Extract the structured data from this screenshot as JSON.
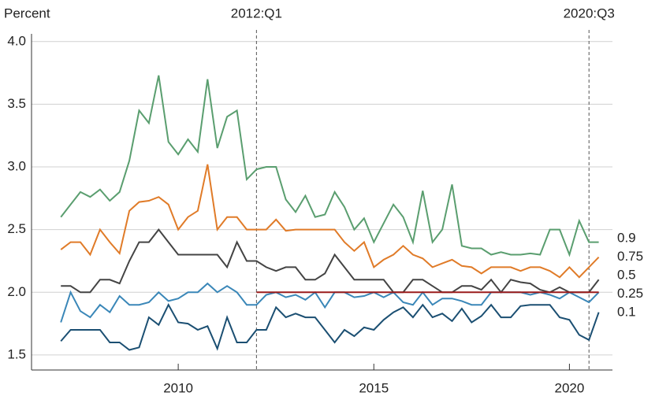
{
  "chart_data": {
    "type": "line",
    "y_label": "Percent",
    "x": [
      2007,
      2007.25,
      2007.5,
      2007.75,
      2008,
      2008.25,
      2008.5,
      2008.75,
      2009,
      2009.25,
      2009.5,
      2009.75,
      2010,
      2010.25,
      2010.5,
      2010.75,
      2011,
      2011.25,
      2011.5,
      2011.75,
      2012,
      2012.25,
      2012.5,
      2012.75,
      2013,
      2013.25,
      2013.5,
      2013.75,
      2014,
      2014.25,
      2014.5,
      2014.75,
      2015,
      2015.25,
      2015.5,
      2015.75,
      2016,
      2016.25,
      2016.5,
      2016.75,
      2017,
      2017.25,
      2017.5,
      2017.75,
      2018,
      2018.25,
      2018.5,
      2018.75,
      2019,
      2019.25,
      2019.5,
      2019.75,
      2020,
      2020.25,
      2020.5,
      2020.75
    ],
    "series": [
      {
        "name": "0.9",
        "color": "#5a9e6f",
        "values": [
          2.6,
          2.7,
          2.8,
          2.76,
          2.82,
          2.73,
          2.8,
          3.05,
          3.45,
          3.35,
          3.73,
          3.2,
          3.1,
          3.22,
          3.12,
          3.7,
          3.15,
          3.4,
          3.45,
          2.9,
          2.98,
          3.0,
          3.0,
          2.74,
          2.64,
          2.77,
          2.6,
          2.62,
          2.8,
          2.68,
          2.5,
          2.59,
          2.4,
          2.55,
          2.7,
          2.6,
          2.4,
          2.81,
          2.4,
          2.5,
          2.86,
          2.37,
          2.35,
          2.35,
          2.3,
          2.32,
          2.3,
          2.3,
          2.31,
          2.3,
          2.5,
          2.5,
          2.3,
          2.57,
          2.4,
          2.4
        ]
      },
      {
        "name": "0.75",
        "color": "#e07b28",
        "values": [
          2.34,
          2.4,
          2.4,
          2.3,
          2.5,
          2.4,
          2.31,
          2.65,
          2.72,
          2.73,
          2.76,
          2.7,
          2.5,
          2.6,
          2.65,
          3.02,
          2.5,
          2.6,
          2.6,
          2.5,
          2.5,
          2.5,
          2.58,
          2.49,
          2.5,
          2.5,
          2.5,
          2.5,
          2.5,
          2.4,
          2.33,
          2.4,
          2.2,
          2.26,
          2.3,
          2.37,
          2.3,
          2.27,
          2.2,
          2.23,
          2.26,
          2.21,
          2.2,
          2.15,
          2.2,
          2.2,
          2.2,
          2.17,
          2.2,
          2.2,
          2.17,
          2.12,
          2.2,
          2.12,
          2.2,
          2.28
        ]
      },
      {
        "name": "0.5",
        "color": "#444444",
        "values": [
          2.05,
          2.05,
          2.0,
          2.0,
          2.1,
          2.1,
          2.07,
          2.25,
          2.4,
          2.4,
          2.5,
          2.4,
          2.3,
          2.3,
          2.3,
          2.3,
          2.3,
          2.2,
          2.4,
          2.25,
          2.25,
          2.2,
          2.17,
          2.2,
          2.2,
          2.1,
          2.1,
          2.15,
          2.3,
          2.2,
          2.1,
          2.1,
          2.1,
          2.1,
          2.0,
          2.0,
          2.1,
          2.1,
          2.05,
          2.0,
          2.0,
          2.05,
          2.05,
          2.02,
          2.1,
          2.0,
          2.1,
          2.08,
          2.07,
          2.02,
          2.0,
          2.04,
          2.0,
          2.0,
          2.0,
          2.1
        ]
      },
      {
        "name": "0.25",
        "color": "#3a87b8",
        "values": [
          1.76,
          2.0,
          1.85,
          1.8,
          1.9,
          1.84,
          1.97,
          1.9,
          1.9,
          1.92,
          2.0,
          1.93,
          1.95,
          2.0,
          2.0,
          2.07,
          2.0,
          2.05,
          2.0,
          1.9,
          1.9,
          1.98,
          2.0,
          1.96,
          1.98,
          1.94,
          2.0,
          1.88,
          2.0,
          2.0,
          1.96,
          1.97,
          2.0,
          1.96,
          2.0,
          1.92,
          1.9,
          2.0,
          1.9,
          1.95,
          1.95,
          1.93,
          1.9,
          1.9,
          2.0,
          2.0,
          2.0,
          2.0,
          1.98,
          2.0,
          1.98,
          1.95,
          2.0,
          1.96,
          1.92,
          2.0
        ]
      },
      {
        "name": "0.1",
        "color": "#1b4f72",
        "values": [
          1.61,
          1.7,
          1.7,
          1.7,
          1.7,
          1.6,
          1.6,
          1.54,
          1.56,
          1.8,
          1.74,
          1.9,
          1.76,
          1.75,
          1.7,
          1.73,
          1.55,
          1.8,
          1.6,
          1.6,
          1.7,
          1.7,
          1.88,
          1.8,
          1.83,
          1.8,
          1.8,
          1.7,
          1.6,
          1.7,
          1.65,
          1.72,
          1.7,
          1.78,
          1.84,
          1.88,
          1.8,
          1.9,
          1.8,
          1.83,
          1.77,
          1.87,
          1.76,
          1.81,
          1.9,
          1.8,
          1.8,
          1.89,
          1.9,
          1.9,
          1.9,
          1.8,
          1.78,
          1.66,
          1.62,
          1.84
        ]
      }
    ],
    "annotations": [
      {
        "label": "2012:Q1",
        "x": 2012
      },
      {
        "label": "2020:Q3",
        "x": 2020.5
      }
    ],
    "reference_line": {
      "y": 2,
      "x": [
        2012,
        2020.75
      ],
      "color": "#9b1c1c"
    },
    "xlim": [
      2006.25,
      2021.1
    ],
    "xticks": [
      2010,
      2015,
      2020
    ],
    "ylim": [
      1.38,
      4.03
    ],
    "yticks": [
      1.5,
      {
        "value": 2,
        "label": "2.0"
      },
      2.5,
      {
        "value": 3,
        "label": "3.0"
      },
      3.5,
      {
        "value": 4,
        "label": "4.0"
      }
    ],
    "grid": true
  }
}
